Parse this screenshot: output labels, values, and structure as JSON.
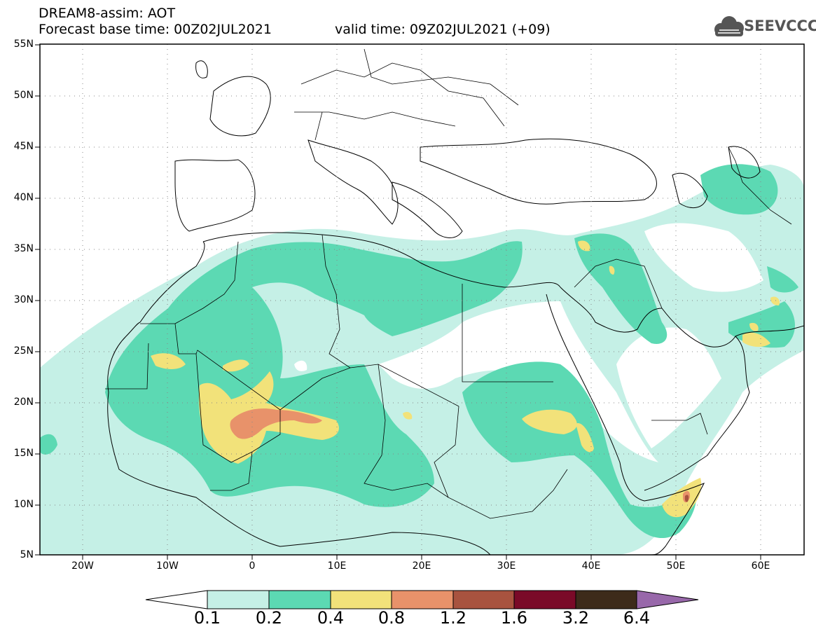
{
  "header": {
    "line1": "DREAM8-assim: AOT",
    "line2": "Forecast base time: 00Z02JUL2021",
    "line3": "valid time: 09Z02JUL2021 (+09)",
    "logo_text": "SEEVCCC",
    "logo_icon": "cloud-logo-icon"
  },
  "map": {
    "lat_labels": [
      "55N",
      "50N",
      "45N",
      "40N",
      "35N",
      "30N",
      "25N",
      "20N",
      "15N",
      "10N",
      "5N"
    ],
    "lon_labels": [
      "20W",
      "10W",
      "0",
      "10E",
      "20E",
      "30E",
      "40E",
      "50E",
      "60E"
    ],
    "colors": {
      "c01": "#c5f0e6",
      "c02": "#5cd9b3",
      "c04": "#f2e27a",
      "c08": "#e8926a",
      "c12": "#a8533f",
      "c16": "#7a0a28",
      "c32": "#3d2b1a",
      "c64": "#9868aa"
    }
  },
  "colorbar": {
    "labels": [
      "0.1",
      "0.2",
      "0.4",
      "0.8",
      "1.2",
      "1.6",
      "3.2",
      "6.4"
    ]
  }
}
